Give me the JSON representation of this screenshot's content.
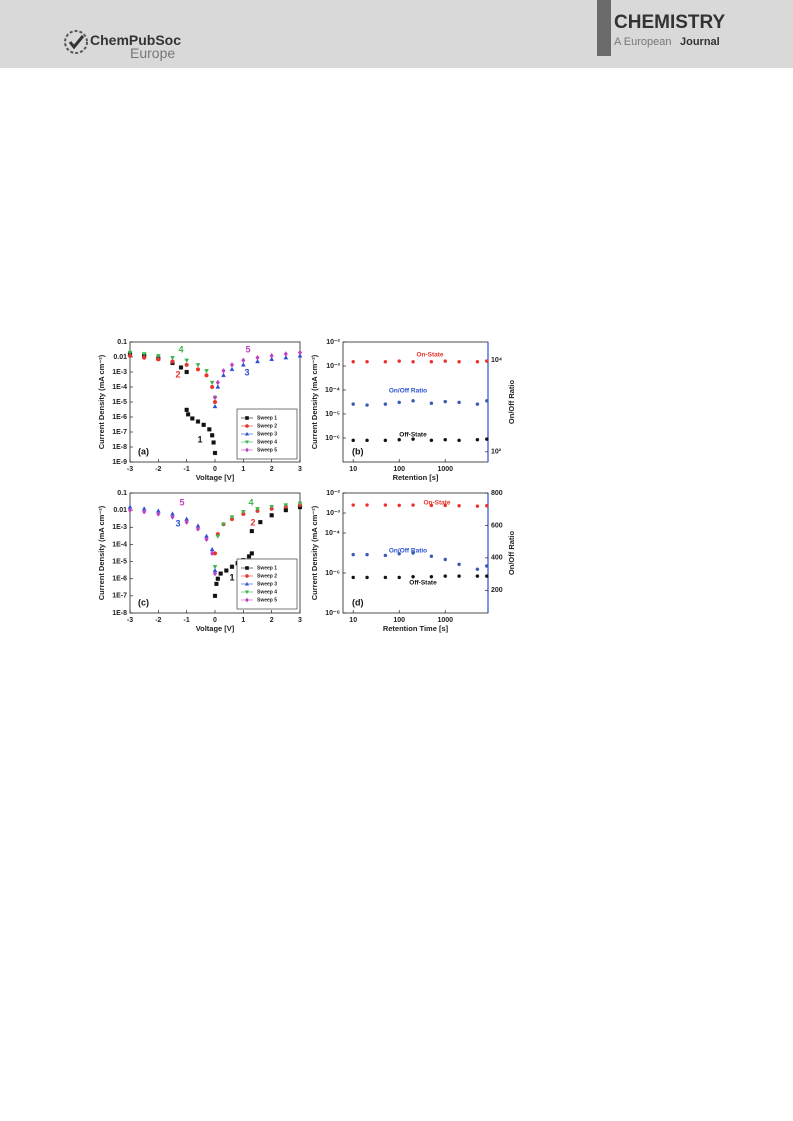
{
  "header": {
    "society": "ChemPubSoc",
    "region": "Europe",
    "journal": "CHEMISTRY",
    "journal_sub": "A European",
    "journal_sub2": "Journal"
  },
  "chart_data": [
    {
      "type": "scatter",
      "panel_label": "(a)",
      "xlabel": "Voltage [V]",
      "ylabel": "Current Density (mA cm⁻²)",
      "xlim": [
        -3,
        3
      ],
      "xticks": [
        -3,
        -2,
        -1,
        0,
        1,
        2,
        3
      ],
      "ylog": true,
      "ylim": [
        1e-09,
        0.1
      ],
      "yticks": [
        0.1,
        0.01,
        {
          "value": 0.001,
          "label": "1E-3"
        },
        {
          "value": 0.0001,
          "label": "1E-4"
        },
        {
          "value": 1e-05,
          "label": "1E-5"
        },
        {
          "value": 1e-06,
          "label": "1E-6"
        },
        {
          "value": 1e-07,
          "label": "1E-7"
        },
        {
          "value": 1e-08,
          "label": "1E-8"
        },
        {
          "value": 1e-09,
          "label": "1E-9"
        }
      ],
      "legend": "lower right",
      "series": [
        {
          "name": "Sweep 1",
          "color": "#111111",
          "marker": "square",
          "x": [
            0,
            -0.05,
            -0.1,
            -0.2,
            -0.4,
            -0.6,
            -0.8,
            -0.95,
            -1,
            -1,
            -1.2,
            -1.5,
            -2,
            -2.5,
            -3
          ],
          "values": [
            4e-09,
            2e-08,
            6e-08,
            1.5e-07,
            3e-07,
            5e-07,
            8e-07,
            1.5e-06,
            3e-06,
            0.001,
            0.002,
            0.004,
            0.008,
            0.012,
            0.015
          ]
        },
        {
          "name": "Sweep 2",
          "color": "#e8322b",
          "marker": "circle",
          "x": [
            -3,
            -2.5,
            -2,
            -1.5,
            -1,
            -0.6,
            -0.3,
            -0.1,
            0
          ],
          "values": [
            0.012,
            0.009,
            0.007,
            0.005,
            0.003,
            0.0015,
            0.0006,
            0.0001,
            1e-05
          ]
        },
        {
          "name": "Sweep 3",
          "color": "#2b4fd1",
          "marker": "triangle",
          "x": [
            0,
            0.1,
            0.3,
            0.6,
            1,
            1.5,
            2,
            2.5,
            3
          ],
          "values": [
            5e-06,
            0.0001,
            0.0006,
            0.0015,
            0.003,
            0.005,
            0.007,
            0.009,
            0.012
          ]
        },
        {
          "name": "Sweep 4",
          "color": "#3cb44b",
          "marker": "triangle-down",
          "x": [
            -3,
            -2.5,
            -2,
            -1.5,
            -1,
            -0.6,
            -0.3,
            -0.1,
            0
          ],
          "values": [
            0.02,
            0.016,
            0.012,
            0.009,
            0.006,
            0.003,
            0.0012,
            0.0002,
            2e-05
          ]
        },
        {
          "name": "Sweep 5",
          "color": "#c040c0",
          "marker": "diamond",
          "x": [
            0,
            0.1,
            0.3,
            0.6,
            1,
            1.5,
            2,
            2.5,
            3
          ],
          "values": [
            2e-05,
            0.0002,
            0.0012,
            0.003,
            0.006,
            0.009,
            0.012,
            0.016,
            0.02
          ]
        }
      ],
      "annotations": [
        {
          "text": "1",
          "color": "#111111"
        },
        {
          "text": "2",
          "color": "#e8322b"
        },
        {
          "text": "3",
          "color": "#2b4fd1"
        },
        {
          "text": "4",
          "color": "#3cb44b"
        },
        {
          "text": "5",
          "color": "#c040c0"
        }
      ]
    },
    {
      "type": "scatter",
      "panel_label": "(b)",
      "xlabel": "Retention [s]",
      "ylabel": "Current Density (mA cm⁻²)",
      "y2label": "On/Off Ratio",
      "y2color": "#2b4fd1",
      "xlog": true,
      "xlim": [
        6,
        8500
      ],
      "xticks": [
        10,
        100,
        1000
      ],
      "ylog": true,
      "ylim": [
        1e-07,
        0.01
      ],
      "yticks": [
        {
          "value": 0.01,
          "label": "10⁻²"
        },
        {
          "value": 0.001,
          "label": "10⁻³"
        },
        {
          "value": 0.0001,
          "label": "10⁻⁴"
        },
        {
          "value": 1e-05,
          "label": "10⁻⁵"
        },
        {
          "value": 1e-06,
          "label": "10⁻⁶"
        }
      ],
      "y2log": true,
      "y2lim": [
        60,
        25000
      ],
      "y2ticks": [
        {
          "value": 100,
          "label": "10²"
        },
        {
          "value": 10000,
          "label": "10⁴"
        }
      ],
      "x": [
        10,
        20,
        50,
        100,
        200,
        500,
        1000,
        2000,
        5000,
        8000
      ],
      "series": [
        {
          "name": "On-State",
          "color": "#e8322b",
          "marker": "circle",
          "values": [
            0.0015,
            0.0015,
            0.0015,
            0.0016,
            0.0015,
            0.0015,
            0.0016,
            0.0015,
            0.0015,
            0.0016
          ]
        },
        {
          "name": "On/Off Ratio",
          "color": "#3a5bb0",
          "marker": "circle",
          "axis": "y2",
          "values": [
            1100,
            1050,
            1100,
            1200,
            1300,
            1150,
            1250,
            1200,
            1100,
            1300
          ]
        },
        {
          "name": "Off-State",
          "color": "#111111",
          "marker": "circle",
          "values": [
            8e-07,
            8e-07,
            8e-07,
            8.5e-07,
            9e-07,
            8e-07,
            8.5e-07,
            8e-07,
            8.5e-07,
            9e-07
          ]
        }
      ],
      "annotations": [
        {
          "text": "On-State",
          "color": "#e8322b"
        },
        {
          "text": "On/Off Ratio",
          "color": "#2b4fd1"
        },
        {
          "text": "Off-State",
          "color": "#111111"
        }
      ]
    },
    {
      "type": "scatter",
      "panel_label": "(c)",
      "xlabel": "Voltage [V]",
      "ylabel": "Current Density (mA cm⁻²)",
      "xlim": [
        -3,
        3
      ],
      "xticks": [
        -3,
        -2,
        -1,
        0,
        1,
        2,
        3
      ],
      "ylog": true,
      "ylim": [
        1e-08,
        0.1
      ],
      "yticks": [
        0.1,
        0.01,
        {
          "value": 0.001,
          "label": "1E-3"
        },
        {
          "value": 0.0001,
          "label": "1E-4"
        },
        {
          "value": 1e-05,
          "label": "1E-5"
        },
        {
          "value": 1e-06,
          "label": "1E-6"
        },
        {
          "value": 1e-07,
          "label": "1E-7"
        },
        {
          "value": 1e-08,
          "label": "1E-8"
        }
      ],
      "legend": "lower right",
      "series": [
        {
          "name": "Sweep 1",
          "color": "#111111",
          "marker": "square",
          "x": [
            0,
            0.05,
            0.1,
            0.2,
            0.4,
            0.6,
            0.8,
            1,
            1.2,
            1.3,
            1.3,
            1.6,
            2,
            2.5,
            3
          ],
          "values": [
            1e-07,
            5e-07,
            1e-06,
            2e-06,
            3e-06,
            5e-06,
            8e-06,
            1.2e-05,
            2e-05,
            3e-05,
            0.0006,
            0.002,
            0.005,
            0.01,
            0.015
          ]
        },
        {
          "name": "Sweep 2",
          "color": "#e8322b",
          "marker": "circle",
          "x": [
            0,
            0.1,
            0.3,
            0.6,
            1,
            1.5,
            2,
            2.5,
            3
          ],
          "values": [
            3e-05,
            0.0004,
            0.0015,
            0.003,
            0.006,
            0.009,
            0.012,
            0.016,
            0.02
          ]
        },
        {
          "name": "Sweep 3",
          "color": "#2b4fd1",
          "marker": "triangle",
          "x": [
            -3,
            -2.5,
            -2,
            -1.5,
            -1,
            -0.6,
            -0.3,
            -0.1,
            0
          ],
          "values": [
            0.015,
            0.012,
            0.009,
            0.006,
            0.003,
            0.0012,
            0.0003,
            5e-05,
            3e-06
          ]
        },
        {
          "name": "Sweep 4",
          "color": "#3cb44b",
          "marker": "triangle-down",
          "x": [
            0,
            0.1,
            0.3,
            0.6,
            1,
            1.5,
            2,
            2.5,
            3
          ],
          "values": [
            5e-06,
            0.0003,
            0.0015,
            0.004,
            0.008,
            0.012,
            0.016,
            0.02,
            0.025
          ]
        },
        {
          "name": "Sweep 5",
          "color": "#c040c0",
          "marker": "diamond",
          "x": [
            -3,
            -2.5,
            -2,
            -1.5,
            -1,
            -0.6,
            -0.3,
            -0.1,
            0
          ],
          "values": [
            0.01,
            0.008,
            0.006,
            0.004,
            0.002,
            0.0008,
            0.0002,
            3e-05,
            2e-06
          ]
        }
      ],
      "annotations": [
        {
          "text": "1",
          "color": "#111111"
        },
        {
          "text": "2",
          "color": "#e8322b"
        },
        {
          "text": "3",
          "color": "#2b4fd1"
        },
        {
          "text": "4",
          "color": "#3cb44b"
        },
        {
          "text": "5",
          "color": "#c040c0"
        }
      ]
    },
    {
      "type": "scatter",
      "panel_label": "(d)",
      "xlabel": "Retention Time [s]",
      "ylabel": "Current Density (mA cm⁻²)",
      "y2label": "On/Off Ratio",
      "y2color": "#2b4fd1",
      "xlog": true,
      "xlim": [
        6,
        8500
      ],
      "xticks": [
        10,
        100,
        1000
      ],
      "ylog": true,
      "ylim": [
        1e-08,
        0.01
      ],
      "yticks": [
        {
          "value": 0.01,
          "label": "10⁻²"
        },
        {
          "value": 0.001,
          "label": "10⁻³"
        },
        {
          "value": 0.0001,
          "label": "10⁻⁴"
        },
        {
          "value": 1e-06,
          "label": "10⁻⁶"
        },
        {
          "value": 1e-08,
          "label": "10⁻⁸"
        }
      ],
      "y2lim": [
        60,
        800
      ],
      "y2ticks": [
        200,
        400,
        600,
        800
      ],
      "x": [
        10,
        20,
        50,
        100,
        200,
        500,
        1000,
        2000,
        5000,
        8000
      ],
      "series": [
        {
          "name": "On-State",
          "color": "#e8322b",
          "marker": "circle",
          "values": [
            0.0025,
            0.0025,
            0.0025,
            0.0024,
            0.0025,
            0.0024,
            0.0024,
            0.0023,
            0.0022,
            0.0023
          ]
        },
        {
          "name": "On/Off Ratio",
          "color": "#3a5bb0",
          "marker": "circle",
          "axis": "y2",
          "values": [
            420,
            420,
            415,
            425,
            430,
            410,
            390,
            360,
            330,
            350
          ]
        },
        {
          "name": "Off-State",
          "color": "#111111",
          "marker": "circle",
          "values": [
            6e-07,
            6e-07,
            6e-07,
            6e-07,
            6.5e-07,
            6.5e-07,
            7e-07,
            7e-07,
            7e-07,
            7e-07
          ]
        }
      ],
      "annotations": [
        {
          "text": "On-State",
          "color": "#e8322b"
        },
        {
          "text": "On/Off Ratio",
          "color": "#2b4fd1"
        },
        {
          "text": "Off-State",
          "color": "#111111"
        }
      ]
    }
  ]
}
